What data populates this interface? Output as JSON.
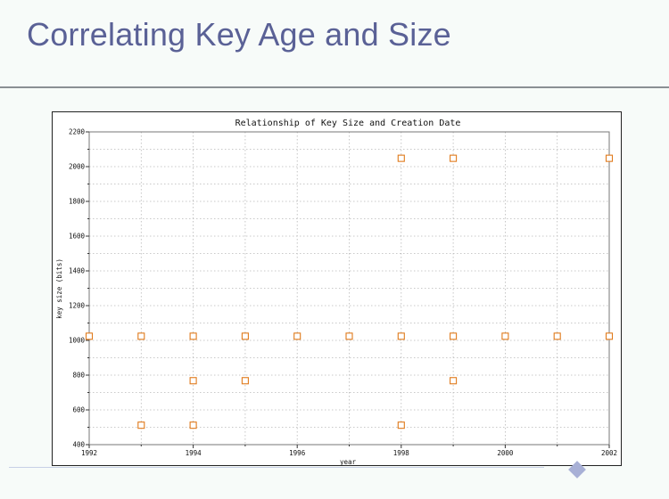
{
  "slide": {
    "title": "Correlating Key Age and Size"
  },
  "chart_data": {
    "type": "scatter",
    "title": "Relationship of Key Size and Creation Date",
    "xlabel": "year",
    "ylabel": "key size (bits)",
    "xlim": [
      1992,
      2002
    ],
    "ylim": [
      400,
      2200
    ],
    "x_ticks": [
      1992,
      1994,
      1996,
      1998,
      2000,
      2002
    ],
    "y_ticks": [
      400,
      600,
      800,
      1000,
      1200,
      1400,
      1600,
      1800,
      2000,
      2200
    ],
    "grid": true,
    "marker": "square",
    "marker_color": "#e07a1b",
    "points": [
      {
        "x": 1992,
        "y": 1024
      },
      {
        "x": 1993,
        "y": 1024
      },
      {
        "x": 1994,
        "y": 1024
      },
      {
        "x": 1995,
        "y": 1024
      },
      {
        "x": 1996,
        "y": 1024
      },
      {
        "x": 1997,
        "y": 1024
      },
      {
        "x": 1998,
        "y": 1024
      },
      {
        "x": 1999,
        "y": 1024
      },
      {
        "x": 2000,
        "y": 1024
      },
      {
        "x": 2001,
        "y": 1024
      },
      {
        "x": 2002,
        "y": 1024
      },
      {
        "x": 1998,
        "y": 2048
      },
      {
        "x": 1999,
        "y": 2048
      },
      {
        "x": 2002,
        "y": 2048
      },
      {
        "x": 1994,
        "y": 768
      },
      {
        "x": 1995,
        "y": 768
      },
      {
        "x": 1999,
        "y": 768
      },
      {
        "x": 1993,
        "y": 512
      },
      {
        "x": 1994,
        "y": 512
      },
      {
        "x": 1998,
        "y": 512
      }
    ]
  }
}
